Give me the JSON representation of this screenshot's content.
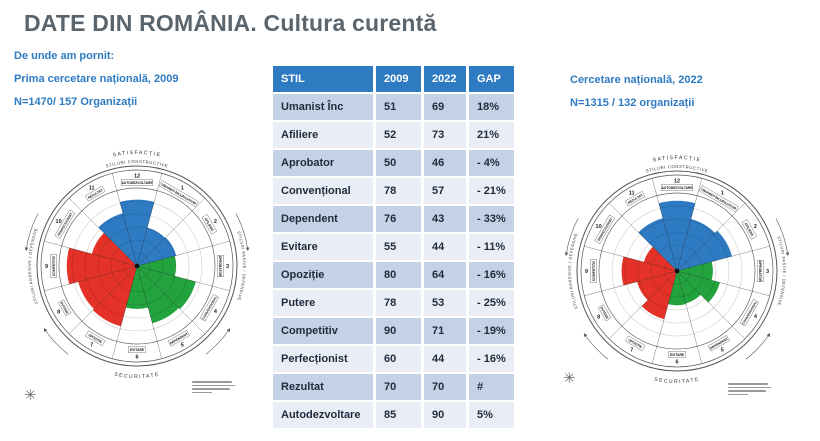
{
  "page": {
    "title": "DATE DIN ROMÂNIA. Cultura curentă"
  },
  "intro_left": {
    "lines": [
      "De unde am pornit:",
      "Prima cercetare națională, 2009",
      "N=1470/ 157 Organizații"
    ]
  },
  "intro_right": {
    "lines": [
      "Cercetare națională, 2022",
      "N=1315 / 132 organizații"
    ]
  },
  "table": {
    "headers": [
      "STIL",
      "2009",
      "2022",
      "GAP"
    ],
    "rows": [
      [
        "Umanist Înc",
        "51",
        "69",
        "18%"
      ],
      [
        "Afiliere",
        "52",
        "73",
        "21%"
      ],
      [
        "Aprobator",
        "50",
        "46",
        "- 4%"
      ],
      [
        "Convențional",
        "78",
        "57",
        "- 21%"
      ],
      [
        "Dependent",
        "76",
        "43",
        "- 33%"
      ],
      [
        "Evitare",
        "55",
        "44",
        "- 11%"
      ],
      [
        "Opoziție",
        "80",
        "64",
        "- 16%"
      ],
      [
        "Putere",
        "78",
        "53",
        "- 25%"
      ],
      [
        "Competitiv",
        "90",
        "71",
        "- 19%"
      ],
      [
        "Perfecționist",
        "60",
        "44",
        "- 16%"
      ],
      [
        "Rezultat",
        "70",
        "70",
        "#"
      ],
      [
        "Autodezvoltare",
        "85",
        "90",
        "5%"
      ]
    ]
  },
  "chart_data": [
    {
      "type": "polar",
      "name": "circumplex-2009",
      "title": "Prima cercetare națională, 2009",
      "scale": {
        "min": 0,
        "max": 100,
        "unit": "percentil"
      },
      "values": {
        "Autodezvoltare": 85,
        "Umanist-Încurajator": 51,
        "Afiliere": 52,
        "Aprobator": 50,
        "Convențional": 78,
        "Dependent": 76,
        "Evitare": 55,
        "Opoziție": 80,
        "Putere": 78,
        "Competitiv": 90,
        "Perfecționist": 60,
        "Rezultat": 70
      }
    },
    {
      "type": "polar",
      "name": "circumplex-2022",
      "title": "Cercetare națională, 2022",
      "scale": {
        "min": 0,
        "max": 100,
        "unit": "percentil"
      },
      "values": {
        "Autodezvoltare": 90,
        "Umanist-Încurajator": 69,
        "Afiliere": 73,
        "Aprobator": 46,
        "Convențional": 57,
        "Dependent": 43,
        "Evitare": 44,
        "Opoziție": 64,
        "Putere": 53,
        "Competitiv": 71,
        "Perfecționist": 44,
        "Rezultat": 70
      }
    }
  ],
  "circumplex_layout": {
    "sectors": [
      {
        "clock": 12,
        "number": "12",
        "label": "AUTODEZVOLTARE",
        "style_key": "Autodezvoltare",
        "group": "constructive"
      },
      {
        "clock": 1,
        "number": "1",
        "label": "UMANIST-ÎNCURAJATOR",
        "style_key": "Umanist-Încurajator",
        "group": "constructive"
      },
      {
        "clock": 2,
        "number": "2",
        "label": "AFILIERE",
        "style_key": "Afiliere",
        "group": "constructive"
      },
      {
        "clock": 3,
        "number": "3",
        "label": "APROBATOR",
        "style_key": "Aprobator",
        "group": "passive"
      },
      {
        "clock": 4,
        "number": "4",
        "label": "CONVENȚIONAL",
        "style_key": "Convențional",
        "group": "passive"
      },
      {
        "clock": 5,
        "number": "5",
        "label": "DEPENDENT",
        "style_key": "Dependent",
        "group": "passive"
      },
      {
        "clock": 6,
        "number": "6",
        "label": "EVITARE",
        "style_key": "Evitare",
        "group": "passive"
      },
      {
        "clock": 7,
        "number": "7",
        "label": "OPOZIȚIE",
        "style_key": "Opoziție",
        "group": "aggressive"
      },
      {
        "clock": 8,
        "number": "8",
        "label": "PUTERE",
        "style_key": "Putere",
        "group": "aggressive"
      },
      {
        "clock": 9,
        "number": "9",
        "label": "COMPETITIV",
        "style_key": "Competitiv",
        "group": "aggressive"
      },
      {
        "clock": 10,
        "number": "10",
        "label": "PERFECȚIONIST",
        "style_key": "Perfecționist",
        "group": "aggressive"
      },
      {
        "clock": 11,
        "number": "11",
        "label": "REZULTAT",
        "style_key": "Rezultat",
        "group": "constructive"
      }
    ],
    "group_colors": {
      "constructive": "#2e7bc4",
      "passive": "#22a33e",
      "aggressive": "#e53228"
    },
    "arc_labels": {
      "top_outer": "SATISFACȚIE",
      "top_inner": "STILURI CONSTRUCTIVE",
      "left": "STILURI AGRESIVE / DEFENSIVE",
      "right": "STILURI PASIVE / DEFENSIVE",
      "bottom": "SECURITATE"
    }
  },
  "colors": {
    "accent_blue": "#2e7bc2",
    "table_header_bg": "#2e7bc1",
    "row_dark": "#c4d2e6",
    "row_light": "#e9eef6",
    "title_gray": "#59646d"
  }
}
